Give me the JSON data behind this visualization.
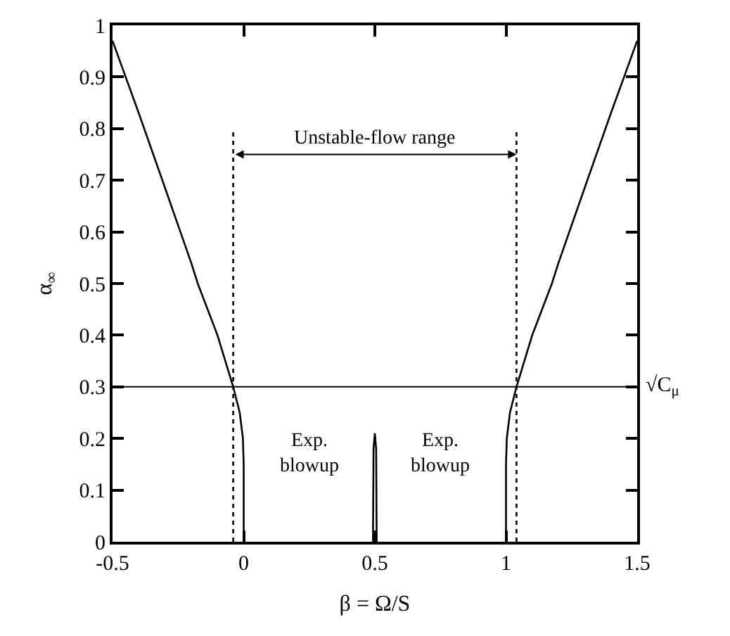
{
  "chart_data": {
    "type": "line",
    "xlabel": "β = Ω/S",
    "ylabel": "α$_{∞}$",
    "xlim": [
      -0.5,
      1.5
    ],
    "xticks": [
      -0.5,
      0,
      0.5,
      1,
      1.5
    ],
    "ylim": [
      0,
      1
    ],
    "yticks": [
      0,
      0.1,
      0.2,
      0.3,
      0.4,
      0.5,
      0.6,
      0.7,
      0.8,
      0.9,
      1
    ],
    "marker": "none",
    "series": [
      {
        "color": "#000000",
        "x": [
          -0.5,
          -0.45,
          -0.4,
          -0.31,
          -0.2,
          -0.175,
          -0.1,
          -0.04,
          -0.015,
          -0.003,
          0,
          0
        ],
        "values": [
          0.97,
          0.9,
          0.83,
          0.7,
          0.54,
          0.5,
          0.4,
          0.3,
          0.25,
          0.2,
          0.15,
          0
        ]
      },
      {
        "color": "#000000",
        "x": [
          1,
          1,
          1.003,
          1.015,
          1.04,
          1.1,
          1.175,
          1.2,
          1.31,
          1.4,
          1.45,
          1.5
        ],
        "values": [
          0,
          0.15,
          0.2,
          0.25,
          0.3,
          0.4,
          0.5,
          0.54,
          0.7,
          0.83,
          0.9,
          0.97
        ]
      },
      {
        "color": "#000000",
        "x": [
          0.493,
          0.495,
          0.5,
          0.505,
          0.507
        ],
        "values": [
          0,
          0.18,
          0.21,
          0.18,
          0
        ]
      },
      {
        "color": "#000000",
        "line_style": "dotted",
        "x": [
          -0.04,
          -0.04
        ],
        "values": [
          0,
          0.8
        ]
      },
      {
        "color": "#000000",
        "line_style": "dotted",
        "x": [
          1.04,
          1.04
        ],
        "values": [
          0,
          0.8
        ]
      }
    ],
    "ref_lines": [
      {
        "axis": "y",
        "value": 0.3,
        "label": "√C$_{μ}$",
        "color": "#000000"
      }
    ],
    "annotations": [
      "Unstable-flow range",
      "Exp.\nblowup",
      "Exp.\nblowup"
    ]
  }
}
